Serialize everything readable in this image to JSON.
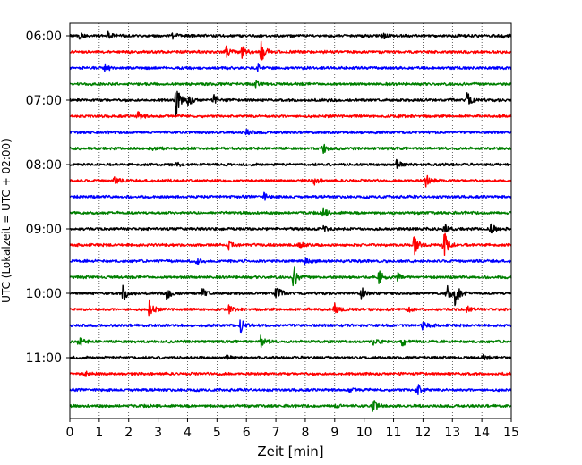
{
  "chart_data": {
    "type": "line",
    "subtype": "helicorder",
    "xlabel": "Zeit  [min]",
    "ylabel": "UTC (Lokalzeit = UTC + 02:00)",
    "xlim": [
      0,
      15
    ],
    "x_ticks": [
      0,
      1,
      2,
      3,
      4,
      5,
      6,
      7,
      8,
      9,
      10,
      11,
      12,
      13,
      14,
      15
    ],
    "x_tick_labels": [
      "0",
      "1",
      "2",
      "3",
      "4",
      "5",
      "6",
      "7",
      "8",
      "9",
      "10",
      "11",
      "12",
      "13",
      "14",
      "15"
    ],
    "x_grid": "dotted vertical lines at each minute",
    "trace_interval_minutes": 15,
    "colors": [
      "#000000",
      "#ff0000",
      "#0000ff",
      "#008000"
    ],
    "y_tick_labels": [
      "06:00",
      "07:00",
      "08:00",
      "09:00",
      "10:00",
      "11:00"
    ],
    "traces": [
      {
        "start": "06:00",
        "color": "#000000",
        "events": [
          {
            "t": 0.3,
            "amp": 0.4
          },
          {
            "t": 1.3,
            "amp": 0.3
          },
          {
            "t": 3.5,
            "amp": 0.3
          },
          {
            "t": 10.6,
            "amp": 0.35
          },
          {
            "t": 14.7,
            "amp": 0.35
          }
        ]
      },
      {
        "start": "06:15",
        "color": "#ff0000",
        "events": [
          {
            "t": 5.3,
            "amp": 0.8
          },
          {
            "t": 5.85,
            "amp": 0.6
          },
          {
            "t": 6.5,
            "amp": 1.1
          }
        ]
      },
      {
        "start": "06:30",
        "color": "#0000ff",
        "events": [
          {
            "t": 1.2,
            "amp": 0.35
          },
          {
            "t": 6.4,
            "amp": 0.3
          }
        ]
      },
      {
        "start": "06:45",
        "color": "#008000",
        "events": [
          {
            "t": 6.3,
            "amp": 0.25
          }
        ]
      },
      {
        "start": "07:00",
        "color": "#000000",
        "events": [
          {
            "t": 3.6,
            "amp": 1.5
          },
          {
            "t": 4.0,
            "amp": 0.5
          },
          {
            "t": 4.9,
            "amp": 0.4
          },
          {
            "t": 13.5,
            "amp": 0.7
          }
        ]
      },
      {
        "start": "07:15",
        "color": "#ff0000",
        "events": [
          {
            "t": 2.3,
            "amp": 0.45
          }
        ]
      },
      {
        "start": "07:30",
        "color": "#0000ff",
        "events": [
          {
            "t": 6.0,
            "amp": 0.25
          }
        ]
      },
      {
        "start": "07:45",
        "color": "#008000",
        "events": [
          {
            "t": 8.6,
            "amp": 0.5
          },
          {
            "t": 2.8,
            "amp": 0.2
          }
        ]
      },
      {
        "start": "08:00",
        "color": "#000000",
        "events": [
          {
            "t": 11.1,
            "amp": 0.4
          },
          {
            "t": 3.6,
            "amp": 0.2
          }
        ]
      },
      {
        "start": "08:15",
        "color": "#ff0000",
        "events": [
          {
            "t": 1.5,
            "amp": 0.35
          },
          {
            "t": 8.3,
            "amp": 0.4
          },
          {
            "t": 12.1,
            "amp": 0.6
          }
        ]
      },
      {
        "start": "08:30",
        "color": "#0000ff",
        "events": [
          {
            "t": 6.6,
            "amp": 0.3
          }
        ]
      },
      {
        "start": "08:45",
        "color": "#008000",
        "events": [
          {
            "t": 8.6,
            "amp": 0.45
          }
        ]
      },
      {
        "start": "09:00",
        "color": "#000000",
        "events": [
          {
            "t": 12.7,
            "amp": 0.6
          },
          {
            "t": 14.3,
            "amp": 0.6
          },
          {
            "t": 8.6,
            "amp": 0.25
          }
        ]
      },
      {
        "start": "09:15",
        "color": "#ff0000",
        "events": [
          {
            "t": 5.4,
            "amp": 0.4
          },
          {
            "t": 11.7,
            "amp": 0.9
          },
          {
            "t": 12.7,
            "amp": 1.6
          },
          {
            "t": 7.8,
            "amp": 0.25
          }
        ]
      },
      {
        "start": "09:30",
        "color": "#0000ff",
        "events": [
          {
            "t": 4.3,
            "amp": 0.35
          },
          {
            "t": 8.0,
            "amp": 0.45
          }
        ]
      },
      {
        "start": "09:45",
        "color": "#008000",
        "events": [
          {
            "t": 7.6,
            "amp": 1.1
          },
          {
            "t": 10.5,
            "amp": 0.9
          },
          {
            "t": 11.1,
            "amp": 0.5
          }
        ]
      },
      {
        "start": "10:00",
        "color": "#000000",
        "events": [
          {
            "t": 1.8,
            "amp": 0.8
          },
          {
            "t": 3.3,
            "amp": 0.6
          },
          {
            "t": 4.5,
            "amp": 0.5
          },
          {
            "t": 7.0,
            "amp": 0.8
          },
          {
            "t": 9.9,
            "amp": 0.6
          },
          {
            "t": 12.8,
            "amp": 0.8
          },
          {
            "t": 13.1,
            "amp": 1.3
          }
        ]
      },
      {
        "start": "10:15",
        "color": "#ff0000",
        "events": [
          {
            "t": 2.7,
            "amp": 0.8
          },
          {
            "t": 5.4,
            "amp": 0.3
          },
          {
            "t": 9.0,
            "amp": 0.5
          },
          {
            "t": 11.5,
            "amp": 0.3
          },
          {
            "t": 13.5,
            "amp": 0.3
          }
        ]
      },
      {
        "start": "10:30",
        "color": "#0000ff",
        "events": [
          {
            "t": 5.8,
            "amp": 0.6
          },
          {
            "t": 12.0,
            "amp": 0.5
          }
        ]
      },
      {
        "start": "10:45",
        "color": "#008000",
        "events": [
          {
            "t": 0.3,
            "amp": 0.5
          },
          {
            "t": 6.5,
            "amp": 0.7
          },
          {
            "t": 10.3,
            "amp": 0.6
          },
          {
            "t": 11.3,
            "amp": 0.4
          }
        ]
      },
      {
        "start": "11:00",
        "color": "#000000",
        "events": [
          {
            "t": 5.3,
            "amp": 0.2
          },
          {
            "t": 14.0,
            "amp": 0.25
          }
        ]
      },
      {
        "start": "11:15",
        "color": "#ff0000",
        "events": [
          {
            "t": 0.5,
            "amp": 0.3
          }
        ]
      },
      {
        "start": "11:30",
        "color": "#0000ff",
        "events": [
          {
            "t": 11.8,
            "amp": 0.7
          },
          {
            "t": 9.5,
            "amp": 0.2
          }
        ]
      },
      {
        "start": "11:45",
        "color": "#008000",
        "events": [
          {
            "t": 10.3,
            "amp": 0.7
          },
          {
            "t": 9.0,
            "amp": 0.2
          }
        ]
      }
    ]
  }
}
